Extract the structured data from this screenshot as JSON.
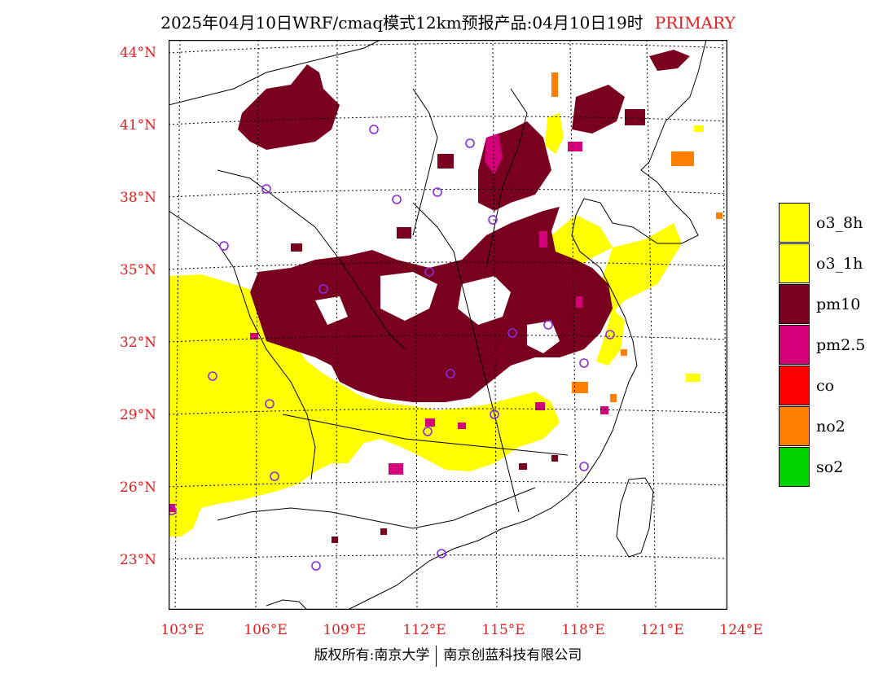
{
  "header": {
    "title": "2025年04月10日WRF/cmaq模式12km预报产品:04月10日19时",
    "tag": "PRIMARY"
  },
  "map": {
    "lat_labels": [
      "44°N",
      "41°N",
      "38°N",
      "35°N",
      "32°N",
      "29°N",
      "26°N",
      "23°N"
    ],
    "lon_labels": [
      "103°E",
      "106°E",
      "109°E",
      "112°E",
      "115°E",
      "118°E",
      "121°E",
      "124°E"
    ],
    "colors": {
      "o3_8h": "#ffff00",
      "o3_1h": "#ffff00",
      "pm10": "#7a0020",
      "pm2_5": "#d4007a",
      "co": "#ff0000",
      "no2": "#ff7f00",
      "so2": "#00d400",
      "station_marker": "#8a2be2",
      "label_color": "#e02020"
    }
  },
  "legend": {
    "items": [
      {
        "label": "o3_8h",
        "color": "#ffff00"
      },
      {
        "label": "o3_1h",
        "color": "#ffff00"
      },
      {
        "label": "pm10",
        "color": "#7a0020"
      },
      {
        "label": "pm2.5",
        "color": "#d4007a"
      },
      {
        "label": "co",
        "color": "#ff0000"
      },
      {
        "label": "no2",
        "color": "#ff7f00"
      },
      {
        "label": "so2",
        "color": "#00d400"
      }
    ]
  },
  "footer": {
    "left": "版权所有:南京大学",
    "right": "南京创蓝科技有限公司"
  }
}
